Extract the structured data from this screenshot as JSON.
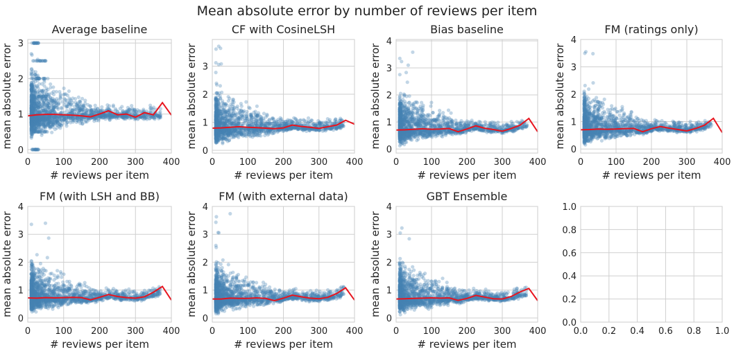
{
  "figure": {
    "title": "Mean absolute error by number of reviews per item"
  },
  "chart_data": [
    {
      "type": "scatter",
      "title": "Average baseline",
      "xlabel": "# reviews per item",
      "ylabel": "mean absolute error",
      "xlim": [
        0,
        400
      ],
      "ylim": [
        -0.1,
        3.1
      ],
      "xticks": [
        0,
        100,
        200,
        300,
        400
      ],
      "yticks": [
        0,
        1,
        2,
        3
      ],
      "xtick_labels": [
        "0",
        "100",
        "200",
        "300",
        "400"
      ],
      "ytick_labels": [
        "0",
        "1",
        "2",
        "3"
      ],
      "grid": true,
      "scatter": {
        "color": "#4682b4",
        "center": 0.97,
        "spread_low": 0.75,
        "spread_high": 1.5,
        "cap": 3.0,
        "discrete": true
      },
      "series": [
        {
          "color": "#e8141e",
          "x": [
            0,
            25,
            50,
            75,
            100,
            125,
            150,
            175,
            200,
            225,
            250,
            275,
            300,
            325,
            350,
            375,
            400
          ],
          "y": [
            0.95,
            0.98,
            0.99,
            0.99,
            0.98,
            0.97,
            0.95,
            0.92,
            1.0,
            1.09,
            0.98,
            1.0,
            0.91,
            1.04,
            0.98,
            1.32,
            0.97
          ]
        }
      ]
    },
    {
      "type": "scatter",
      "title": "CF with CosineLSH",
      "xlabel": "# reviews per item",
      "ylabel": "mean absolute error",
      "xlim": [
        0,
        400
      ],
      "ylim": [
        -0.1,
        3.95
      ],
      "xticks": [
        0,
        100,
        200,
        300,
        400
      ],
      "yticks": [
        0,
        1,
        2,
        3
      ],
      "xtick_labels": [
        "0",
        "100",
        "200",
        "300",
        "400"
      ],
      "ytick_labels": [
        "0",
        "1",
        "2",
        "3"
      ],
      "grid": true,
      "scatter": {
        "color": "#4682b4",
        "center": 0.78,
        "spread_low": 0.7,
        "spread_high": 1.8,
        "cap": 3.8,
        "discrete": false
      },
      "series": [
        {
          "color": "#e8141e",
          "x": [
            0,
            25,
            50,
            75,
            100,
            125,
            150,
            175,
            200,
            225,
            250,
            275,
            300,
            325,
            350,
            375,
            400
          ],
          "y": [
            0.79,
            0.8,
            0.82,
            0.84,
            0.82,
            0.81,
            0.79,
            0.77,
            0.8,
            0.9,
            0.85,
            0.82,
            0.78,
            0.84,
            0.9,
            1.07,
            0.93
          ]
        }
      ]
    },
    {
      "type": "scatter",
      "title": "Bias baseline",
      "xlabel": "# reviews per item",
      "ylabel": "mean absolute error",
      "xlim": [
        0,
        400
      ],
      "ylim": [
        -0.15,
        4.05
      ],
      "xticks": [
        0,
        100,
        200,
        300,
        400
      ],
      "yticks": [
        0,
        1,
        2,
        3,
        4
      ],
      "xtick_labels": [
        "0",
        "100",
        "200",
        "300",
        "400"
      ],
      "ytick_labels": [
        "0",
        "1",
        "2",
        "3",
        "4"
      ],
      "grid": true,
      "scatter": {
        "color": "#4682b4",
        "center": 0.72,
        "spread_low": 0.65,
        "spread_high": 1.7,
        "cap": 3.9,
        "discrete": false
      },
      "series": [
        {
          "color": "#e8141e",
          "x": [
            0,
            25,
            50,
            75,
            100,
            125,
            150,
            175,
            200,
            225,
            250,
            275,
            300,
            325,
            350,
            375,
            400
          ],
          "y": [
            0.7,
            0.71,
            0.73,
            0.75,
            0.73,
            0.74,
            0.76,
            0.64,
            0.74,
            0.86,
            0.77,
            0.72,
            0.66,
            0.76,
            0.88,
            1.13,
            0.64
          ]
        }
      ]
    },
    {
      "type": "scatter",
      "title": "FM (ratings only)",
      "xlabel": "# reviews per item",
      "ylabel": "mean absolute error",
      "xlim": [
        0,
        400
      ],
      "ylim": [
        -0.15,
        4.0
      ],
      "xticks": [
        0,
        100,
        200,
        300,
        400
      ],
      "yticks": [
        0,
        1,
        2,
        3,
        4
      ],
      "xtick_labels": [
        "0",
        "100",
        "200",
        "300",
        "400"
      ],
      "ytick_labels": [
        "0",
        "1",
        "2",
        "3",
        "4"
      ],
      "grid": true,
      "scatter": {
        "color": "#4682b4",
        "center": 0.72,
        "spread_low": 0.65,
        "spread_high": 1.7,
        "cap": 3.85,
        "discrete": false
      },
      "series": [
        {
          "color": "#e8141e",
          "x": [
            0,
            25,
            50,
            75,
            100,
            125,
            150,
            175,
            200,
            225,
            250,
            275,
            300,
            325,
            350,
            375,
            400
          ],
          "y": [
            0.7,
            0.71,
            0.73,
            0.72,
            0.73,
            0.74,
            0.75,
            0.63,
            0.74,
            0.82,
            0.76,
            0.71,
            0.66,
            0.75,
            0.87,
            1.12,
            0.6
          ]
        }
      ]
    },
    {
      "type": "scatter",
      "title": "FM (with LSH and BB)",
      "xlabel": "# reviews per item",
      "ylabel": "mean absolute error",
      "xlim": [
        0,
        400
      ],
      "ylim": [
        -0.15,
        4.0
      ],
      "xticks": [
        0,
        100,
        200,
        300,
        400
      ],
      "yticks": [
        0,
        1,
        2,
        3,
        4
      ],
      "xtick_labels": [
        "0",
        "100",
        "200",
        "300",
        "400"
      ],
      "ytick_labels": [
        "0",
        "1",
        "2",
        "3",
        "4"
      ],
      "grid": true,
      "scatter": {
        "color": "#4682b4",
        "center": 0.72,
        "spread_low": 0.65,
        "spread_high": 1.6,
        "cap": 3.8,
        "discrete": false
      },
      "series": [
        {
          "color": "#e8141e",
          "x": [
            0,
            25,
            50,
            75,
            100,
            125,
            150,
            175,
            200,
            225,
            250,
            275,
            300,
            325,
            350,
            375,
            400
          ],
          "y": [
            0.72,
            0.71,
            0.73,
            0.72,
            0.73,
            0.74,
            0.73,
            0.65,
            0.74,
            0.84,
            0.77,
            0.73,
            0.71,
            0.76,
            0.92,
            1.13,
            0.64
          ]
        }
      ]
    },
    {
      "type": "scatter",
      "title": "FM (with external data)",
      "xlabel": "# reviews per item",
      "ylabel": "mean absolute error",
      "xlim": [
        0,
        400
      ],
      "ylim": [
        -0.15,
        4.0
      ],
      "xticks": [
        0,
        100,
        200,
        300,
        400
      ],
      "yticks": [
        0,
        1,
        2,
        3,
        4
      ],
      "xtick_labels": [
        "0",
        "100",
        "200",
        "300",
        "400"
      ],
      "ytick_labels": [
        "0",
        "1",
        "2",
        "3",
        "4"
      ],
      "grid": true,
      "scatter": {
        "color": "#4682b4",
        "center": 0.7,
        "spread_low": 0.65,
        "spread_high": 1.6,
        "cap": 3.8,
        "discrete": false
      },
      "series": [
        {
          "color": "#e8141e",
          "x": [
            0,
            25,
            50,
            75,
            100,
            125,
            150,
            175,
            200,
            225,
            250,
            275,
            300,
            325,
            350,
            375,
            400
          ],
          "y": [
            0.68,
            0.68,
            0.71,
            0.7,
            0.7,
            0.72,
            0.7,
            0.62,
            0.71,
            0.82,
            0.76,
            0.71,
            0.69,
            0.74,
            0.88,
            1.08,
            0.64
          ]
        }
      ]
    },
    {
      "type": "scatter",
      "title": "GBT Ensemble",
      "xlabel": "# reviews per item",
      "ylabel": "mean absolute error",
      "xlim": [
        0,
        400
      ],
      "ylim": [
        -0.15,
        4.0
      ],
      "xticks": [
        0,
        100,
        200,
        300,
        400
      ],
      "yticks": [
        0,
        1,
        2,
        3,
        4
      ],
      "xtick_labels": [
        "0",
        "100",
        "200",
        "300",
        "400"
      ],
      "ytick_labels": [
        "0",
        "1",
        "2",
        "3",
        "4"
      ],
      "grid": true,
      "scatter": {
        "color": "#4682b4",
        "center": 0.7,
        "spread_low": 0.65,
        "spread_high": 1.6,
        "cap": 3.8,
        "discrete": false
      },
      "series": [
        {
          "color": "#e8141e",
          "x": [
            0,
            25,
            50,
            75,
            100,
            125,
            150,
            175,
            200,
            225,
            250,
            275,
            300,
            325,
            350,
            375,
            400
          ],
          "y": [
            0.68,
            0.69,
            0.7,
            0.71,
            0.72,
            0.71,
            0.72,
            0.63,
            0.7,
            0.81,
            0.75,
            0.69,
            0.68,
            0.77,
            0.93,
            1.06,
            0.62
          ]
        }
      ]
    },
    {
      "type": "empty",
      "title": "",
      "xlabel": "",
      "ylabel": "",
      "xlim": [
        0,
        1
      ],
      "ylim": [
        0,
        1
      ],
      "xticks": [
        0,
        0.2,
        0.4,
        0.6,
        0.8,
        1.0
      ],
      "yticks": [
        0,
        0.2,
        0.4,
        0.6,
        0.8,
        1.0
      ],
      "xtick_labels": [
        "0.0",
        "0.2",
        "0.4",
        "0.6",
        "0.8",
        "1.0"
      ],
      "ytick_labels": [
        "0.0",
        "0.2",
        "0.4",
        "0.6",
        "0.8",
        "1.0"
      ],
      "grid": true
    }
  ]
}
